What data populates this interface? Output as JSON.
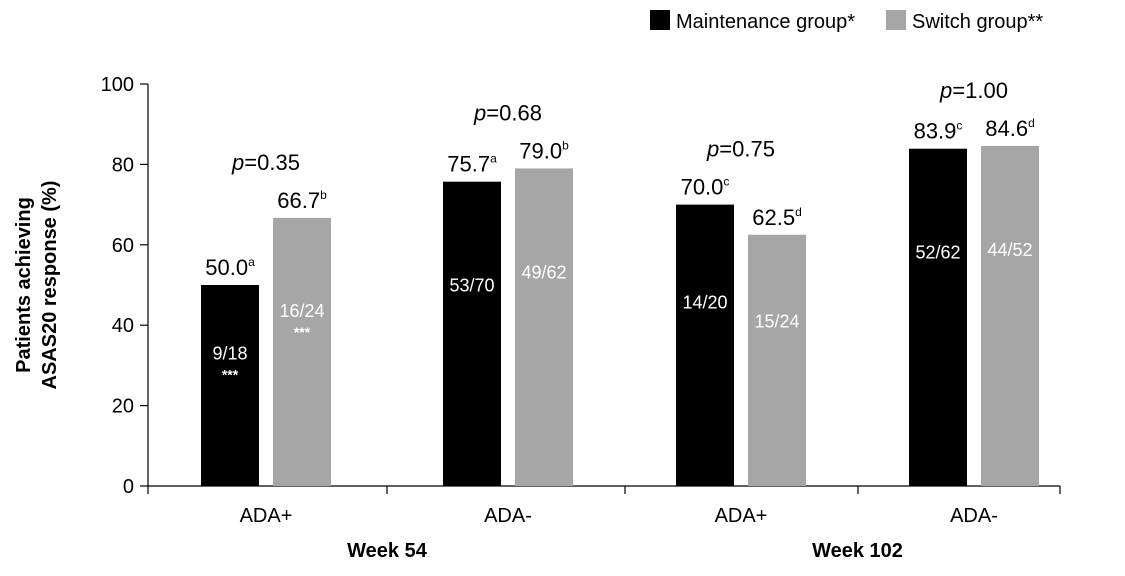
{
  "chart_data": {
    "type": "bar",
    "ylabel": [
      "Patients achieving",
      "ASAS20 response (%)"
    ],
    "xlabel": "",
    "ylim": [
      0,
      100
    ],
    "yticks": [
      0,
      20,
      40,
      60,
      80,
      100
    ],
    "grid": false,
    "legend_position": "top-right",
    "colors": {
      "maintenance": "#000000",
      "switch": "#a6a6a6"
    },
    "groups": [
      {
        "name": "Week 54",
        "categories": [
          {
            "label": "ADA+",
            "pvalue": "0.35",
            "bars": [
              {
                "value": 50.0,
                "label": "50.0",
                "sup": "a",
                "count": "9/18",
                "sig": "***"
              },
              {
                "value": 66.7,
                "label": "66.7",
                "sup": "b",
                "count": "16/24",
                "sig": "***"
              }
            ]
          },
          {
            "label": "ADA-",
            "pvalue": "0.68",
            "bars": [
              {
                "value": 75.7,
                "label": "75.7",
                "sup": "a",
                "count": "53/70",
                "sig": ""
              },
              {
                "value": 79.0,
                "label": "79.0",
                "sup": "b",
                "count": "49/62",
                "sig": ""
              }
            ]
          }
        ]
      },
      {
        "name": "Week 102",
        "categories": [
          {
            "label": "ADA+",
            "pvalue": "0.75",
            "bars": [
              {
                "value": 70.0,
                "label": "70.0",
                "sup": "c",
                "count": "14/20",
                "sig": ""
              },
              {
                "value": 62.5,
                "label": "62.5",
                "sup": "d",
                "count": "15/24",
                "sig": ""
              }
            ]
          },
          {
            "label": "ADA-",
            "pvalue": "1.00",
            "bars": [
              {
                "value": 83.9,
                "label": "83.9",
                "sup": "c",
                "count": "52/62",
                "sig": ""
              },
              {
                "value": 84.6,
                "label": "84.6",
                "sup": "d",
                "count": "44/52",
                "sig": ""
              }
            ]
          }
        ]
      }
    ],
    "series": [
      {
        "name": "Maintenance group*",
        "color": "#000000"
      },
      {
        "name": "Switch group**",
        "color": "#a6a6a6"
      }
    ]
  }
}
